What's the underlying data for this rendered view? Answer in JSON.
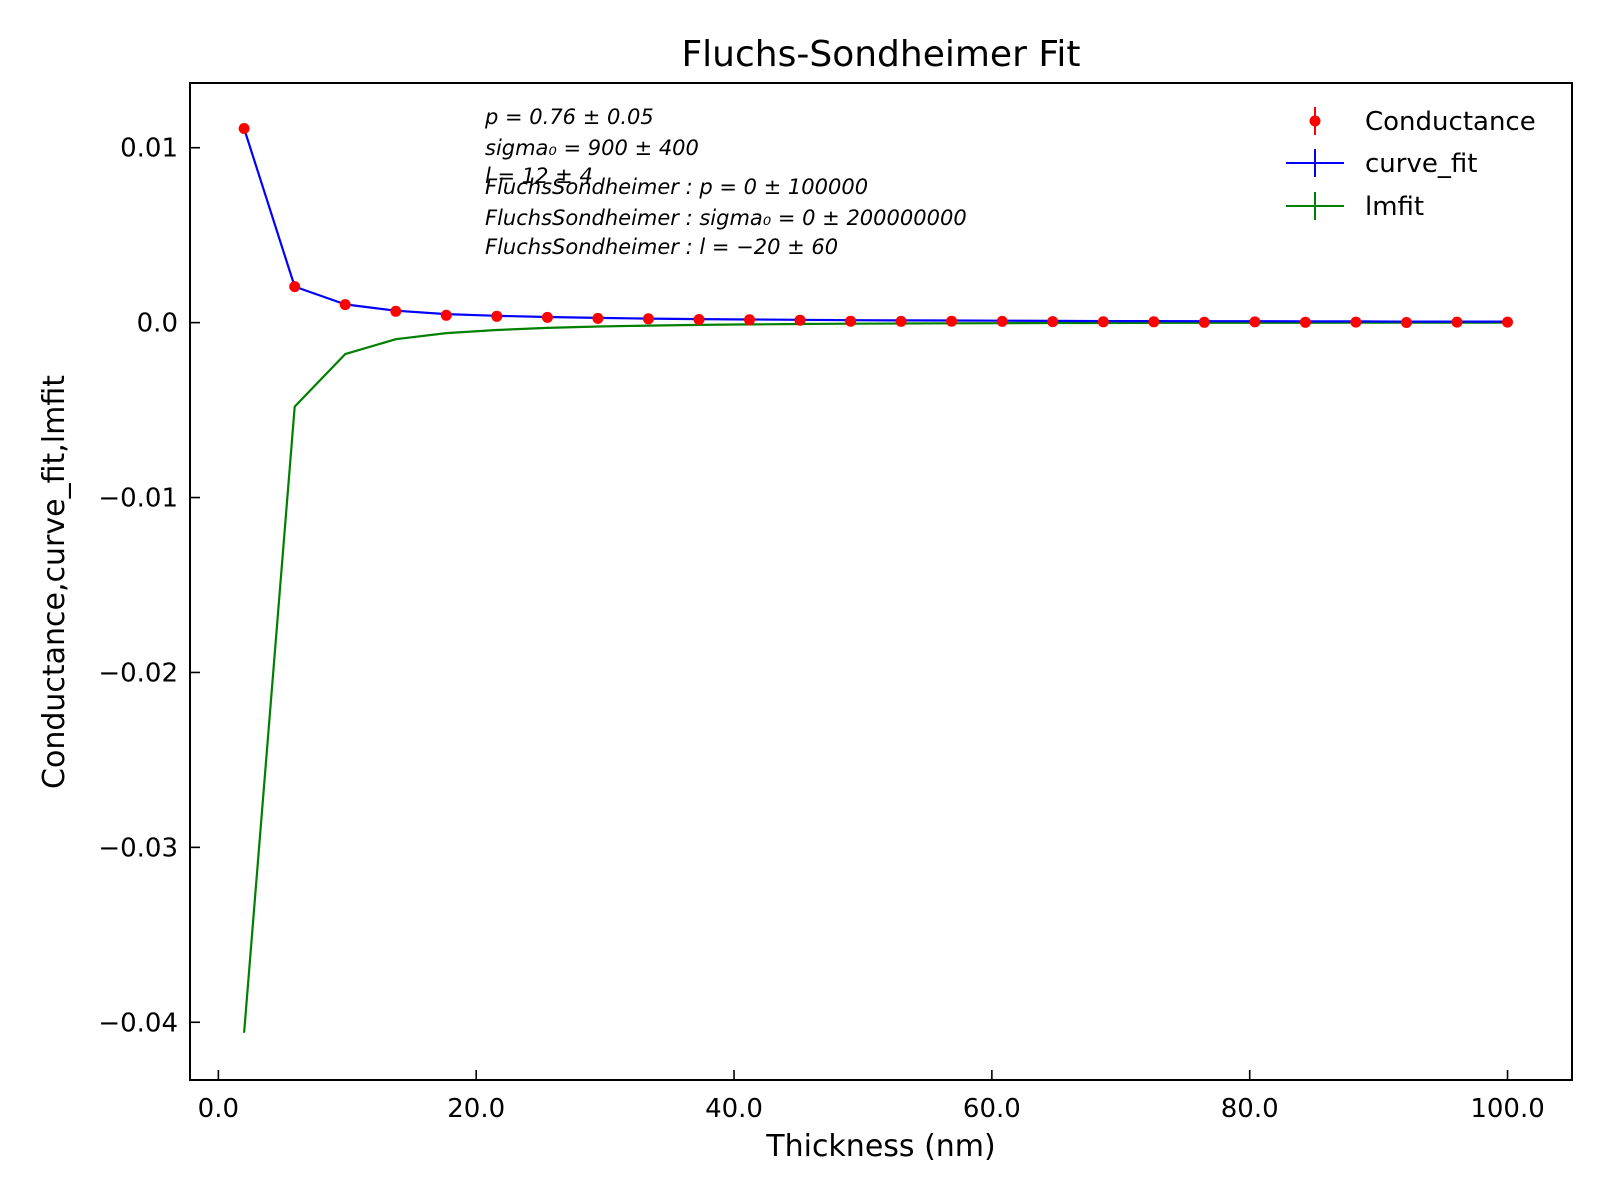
{
  "chart_data": {
    "type": "line",
    "title": "Fluchs-Sondheimer Fit",
    "xlabel": "Thickness (nm)",
    "ylabel": "Conductance,curve_fit,lmfit",
    "xlim": [
      -2.2,
      105
    ],
    "ylim": [
      -0.0433,
      0.0137
    ],
    "xticks": [
      0,
      20,
      40,
      60,
      80,
      100
    ],
    "xtick_labels": [
      "0.0",
      "20.0",
      "40.0",
      "60.0",
      "80.0",
      "100.0"
    ],
    "yticks": [
      0.01,
      0.0,
      -0.01,
      -0.02,
      -0.03,
      -0.04
    ],
    "ytick_labels": [
      "0.01",
      "0.0",
      "−0.01",
      "−0.02",
      "−0.03",
      "−0.04"
    ],
    "grid": false,
    "legend_position": "top-right",
    "annotations": [
      "p = 0.76 ± 0.05",
      "sigma₀ = 900 ± 400",
      "l = 12 ± 4",
      "FluchsSondheimer : p = 0 ± 100000",
      "FluchsSondheimer : sigma₀ = 0 ± 200000000",
      "FluchsSondheimer : l = −20 ± 60"
    ],
    "x": [
      2.0,
      5.92,
      9.84,
      13.76,
      17.68,
      21.6,
      25.52,
      29.44,
      33.36,
      37.28,
      41.2,
      45.12,
      49.04,
      52.96,
      56.88,
      60.8,
      64.72,
      68.64,
      72.56,
      76.48,
      80.4,
      84.32,
      88.24,
      92.16,
      96.08,
      100.0
    ],
    "series": [
      {
        "name": "Conductance",
        "style": "markers",
        "color": "#ff0000",
        "values": [
          0.0111,
          0.00206,
          0.00103,
          0.00065,
          0.00042,
          0.00036,
          0.0003,
          0.00024,
          0.00022,
          0.00018,
          0.00016,
          0.00014,
          8e-05,
          7e-05,
          8e-05,
          7e-05,
          6e-05,
          5e-05,
          5e-05,
          2e-05,
          4e-05,
          2e-05,
          3e-05,
          1e-05,
          3e-05,
          3e-05
        ]
      },
      {
        "name": "curve_fit",
        "style": "line",
        "color": "#0000ff",
        "values": [
          0.0111,
          0.00206,
          0.00104,
          0.00068,
          0.00049,
          0.00039,
          0.00032,
          0.00027,
          0.00023,
          0.0002,
          0.00018,
          0.00016,
          0.00014,
          0.00013,
          0.00012,
          0.00011,
          0.0001,
          9e-05,
          9e-05,
          8e-05,
          8e-05,
          7e-05,
          7e-05,
          6e-05,
          6e-05,
          6e-05
        ]
      },
      {
        "name": "lmfit",
        "style": "line",
        "color": "#008000",
        "values": [
          -0.0406,
          -0.0048,
          -0.0018,
          -0.00095,
          -0.0006,
          -0.00042,
          -0.0003,
          -0.00022,
          -0.00017,
          -0.00013,
          -0.0001,
          -8e-05,
          -6e-05,
          -5e-05,
          -4e-05,
          -3e-05,
          -2e-05,
          -2e-05,
          -1e-05,
          -1e-05,
          -1e-05,
          -1e-05,
          0.0,
          0.0,
          0.0,
          0.0
        ]
      }
    ]
  }
}
